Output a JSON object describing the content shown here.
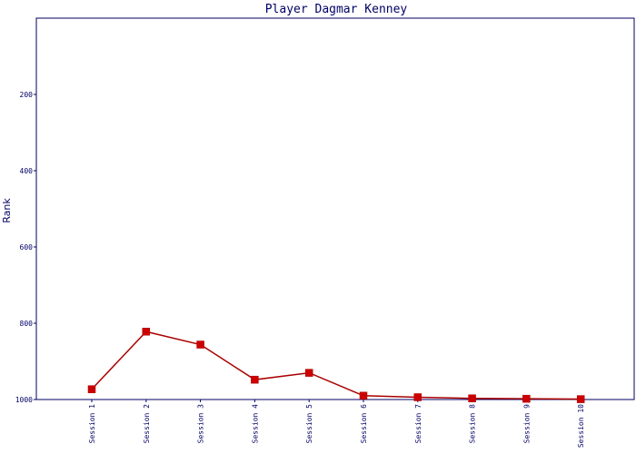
{
  "chart_data": {
    "type": "line",
    "title": "Player Dagmar Kenney",
    "xlabel": "",
    "ylabel": "Rank",
    "categories": [
      "Session 1",
      "Session 2",
      "Session 3",
      "Session 4",
      "Session 5",
      "Session 6",
      "Session 7",
      "Session 8",
      "Session 9",
      "Session 10"
    ],
    "series": [
      {
        "values": [
          973,
          822,
          856,
          948,
          930,
          990,
          994,
          997,
          998,
          999
        ]
      }
    ],
    "y_ticks": [
      200,
      400,
      600,
      800,
      1000
    ],
    "ylim": [
      0,
      1000
    ],
    "y_inverted": true,
    "grid": false,
    "colors": {
      "line": "#aa0000",
      "marker": "#cc0000",
      "axis": "#000066",
      "text": "#000066"
    },
    "marker": "square"
  }
}
